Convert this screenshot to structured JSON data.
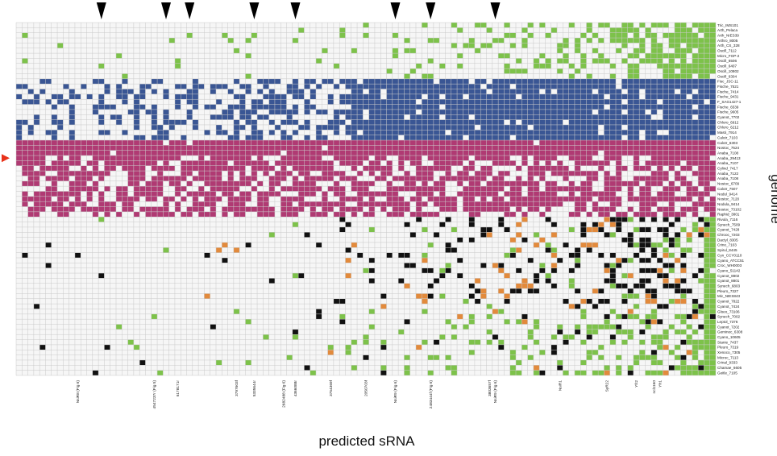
{
  "chart_data": {
    "type": "heatmap",
    "xlabel": "predicted sRNA",
    "ylabel": "genome",
    "n_columns": 119,
    "colors": {
      "absent": "#f6f6f6",
      "grid": "#c9c9c9",
      "green": "#7dc24a",
      "blue": "#3a5694",
      "magenta": "#b03a73",
      "black": "#111111",
      "orange": "#e28a3c",
      "marker": "#000000",
      "arrow": "#e8321a"
    },
    "groups": [
      {
        "color": "green",
        "rows": [
          0,
          10
        ]
      },
      {
        "color": "blue",
        "rows": [
          11,
          22
        ]
      },
      {
        "color": "magenta",
        "rows": [
          23,
          37
        ]
      },
      {
        "color": "green",
        "rows": [
          38,
          68
        ]
      }
    ],
    "genomes": [
      "Tric_IMS101",
      "Arth_Pelaca",
      "Arth_NIES39",
      "Arthro_8005",
      "Arth_CS_328",
      "Oscill_7112",
      "Micro_FGP-2",
      "Oscill_6506",
      "Oscill_6407",
      "Oscill_10802",
      "Oscill_6304",
      "Fisc_JSC-11",
      "Fische_7521",
      "Fische_7414",
      "Fische_9431",
      "F_SAG1427-1",
      "Fische_6539",
      "Fische_9605",
      "Cyanot_7702",
      "Chloro_6912",
      "Chloro_6212",
      "Masti_7914",
      "Calotr_7103",
      "Calotr_6303",
      "Nostoc_7524",
      "Anaba_7108",
      "Anaba_29413",
      "Anaba_7107",
      "Cylind_7417",
      "Anaba_7122",
      "Anaba_7108",
      "Nostoc_6709",
      "Calotr_7507",
      "Nodul_9414",
      "Nostoc_7120",
      "Nodula_9414",
      "Nostoc_73102",
      "Raphid_3801",
      "Rivula_7116",
      "Synech_7509",
      "Cyanot_7428",
      "Chrooc_7203",
      "Dactyl_8305",
      "Crino_7103",
      "Spirul_8445",
      "Cyn_CCY0110",
      "Cyano_ATCC51",
      "Croc_WH0003",
      "Cyano_51142",
      "Cyanot_8802",
      "Cyanot_8801",
      "Synech_6803",
      "Pleuro_7327",
      "Mic_NIES843",
      "Cyanot_7822",
      "Cyanot_7424",
      "Gloeo_73106",
      "Synech_7002",
      "Leptol_7376",
      "Cyanot_7202",
      "Geminoc_6308",
      "Cyano_10605",
      "Stanie_7437",
      "Pleuro_7319",
      "Xenoco_7305",
      "Microc_7113",
      "Crinal_9333",
      "Chamae_6605",
      "Geitle_7105"
    ],
    "srna_labels": [
      {
        "col": 10,
        "text": "NsiR8 (Fig 6)"
      },
      {
        "col": 23,
        "text": "4547237r (Fig 5)"
      },
      {
        "col": 27,
        "text": "6178171r"
      },
      {
        "col": 37,
        "text": "3797603f"
      },
      {
        "col": 40,
        "text": "5335644r"
      },
      {
        "col": 45,
        "text": "2682488 (Fig 6)"
      },
      {
        "col": 47,
        "text": "4366088r"
      },
      {
        "col": 53,
        "text": "3754369f"
      },
      {
        "col": 59,
        "text": "2050703f"
      },
      {
        "col": 64,
        "text": "NsiR9 (Fig 6)"
      },
      {
        "col": 70,
        "text": "2483444f (Fig 6)"
      },
      {
        "col": 80,
        "text": "3803657f"
      },
      {
        "col": 81,
        "text": "NsiR9 (Fig 6)"
      },
      {
        "col": 92,
        "text": "NsiR1"
      },
      {
        "col": 100,
        "text": "SyR22"
      },
      {
        "col": 105,
        "text": "Yfr2"
      },
      {
        "col": 108,
        "text": "ncl1160"
      },
      {
        "col": 109,
        "text": "Yfr1"
      }
    ],
    "markers": {
      "triangle_columns": [
        14,
        25,
        29,
        40,
        47,
        64,
        70,
        81
      ],
      "arrow_row": 26
    }
  }
}
